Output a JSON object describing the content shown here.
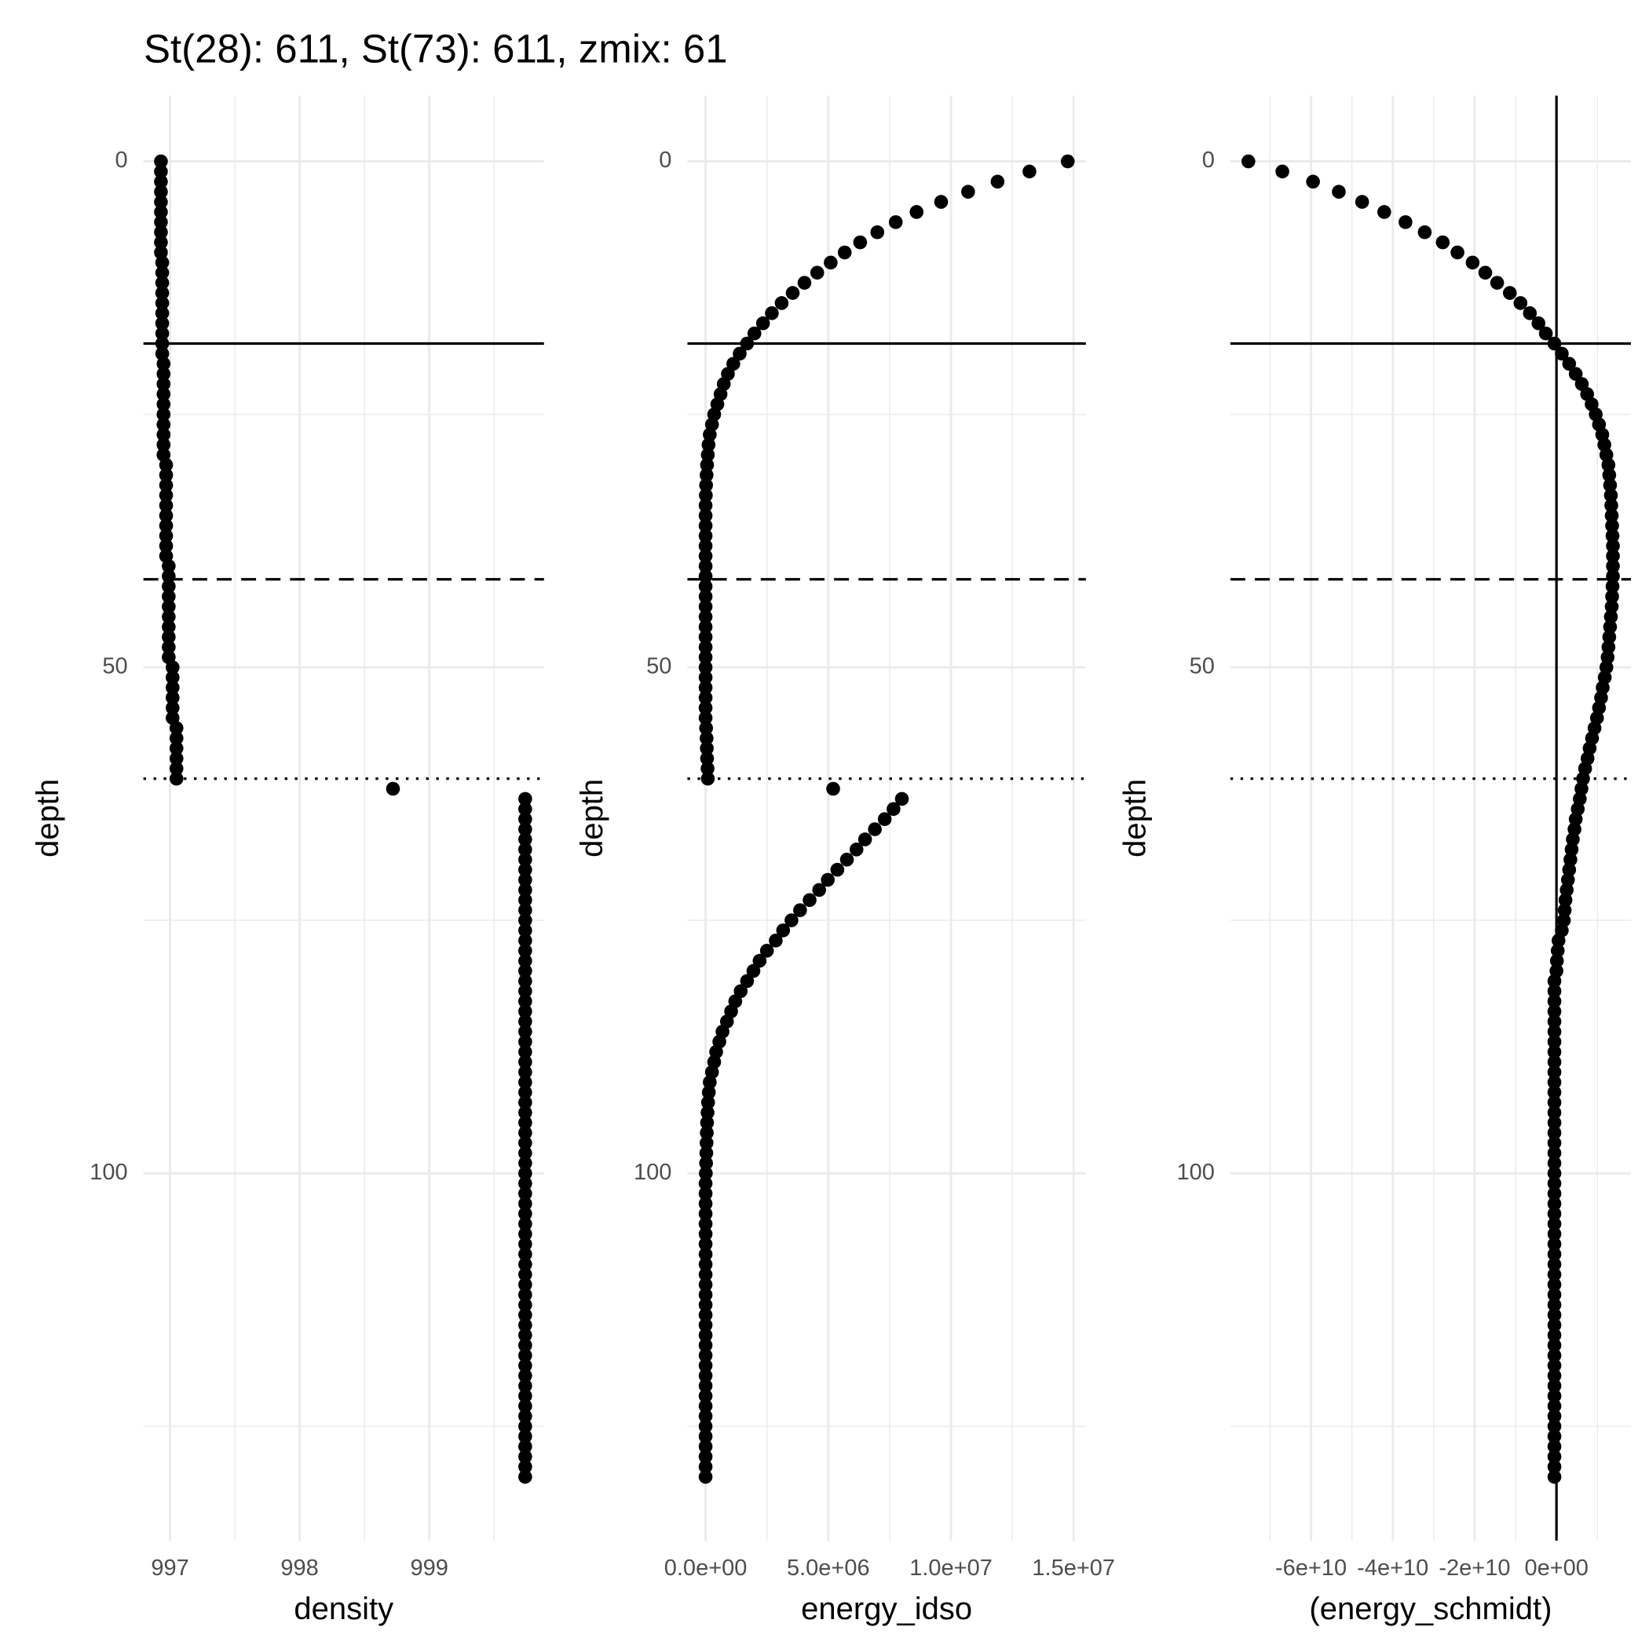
{
  "title": "St(28): 611, St(73): 611, zmix: 61",
  "chart_data": [
    {
      "type": "scatter",
      "x_label": "density",
      "y_label": "depth",
      "color": "#000000",
      "xlim": [
        996.795,
        999.885
      ],
      "xticks": [
        997,
        998,
        999
      ],
      "x_minor_ticks": [
        997.5,
        998.5,
        999.5
      ],
      "ylim": [
        -6.5,
        136.3
      ],
      "y_reverse": true,
      "yticks": [
        0,
        50,
        100
      ],
      "y_minor_ticks": [
        25,
        75,
        125
      ],
      "grid": true,
      "hlines": [
        {
          "value": 18,
          "style": "solid"
        },
        {
          "value": 41.3,
          "style": "dashed"
        },
        {
          "value": 61,
          "style": "dotted"
        }
      ],
      "vlines": [],
      "x": [
        996.93,
        996.93,
        996.93,
        996.93,
        996.93,
        996.93,
        996.93,
        996.93,
        996.93,
        996.93,
        996.94,
        996.94,
        996.94,
        996.94,
        996.94,
        996.94,
        996.94,
        996.94,
        996.94,
        996.94,
        996.95,
        996.95,
        996.95,
        996.95,
        996.95,
        996.95,
        996.95,
        996.95,
        996.95,
        996.95,
        996.97,
        996.97,
        996.97,
        996.97,
        996.97,
        996.97,
        996.97,
        996.97,
        996.97,
        996.97,
        996.99,
        996.99,
        996.99,
        996.99,
        996.99,
        996.99,
        996.99,
        996.99,
        996.99,
        996.99,
        997.02,
        997.02,
        997.02,
        997.02,
        997.02,
        997.02,
        997.05,
        997.05,
        997.05,
        997.05,
        997.05,
        997.05,
        998.72,
        999.74,
        999.74,
        999.74,
        999.74,
        999.74,
        999.74,
        999.74,
        999.74,
        999.74,
        999.74,
        999.74,
        999.74,
        999.74,
        999.74,
        999.74,
        999.74,
        999.74,
        999.74,
        999.74,
        999.74,
        999.74,
        999.74,
        999.74,
        999.74,
        999.74,
        999.74,
        999.74,
        999.74,
        999.74,
        999.74,
        999.74,
        999.74,
        999.74,
        999.74,
        999.74,
        999.74,
        999.74,
        999.74,
        999.74,
        999.74,
        999.74,
        999.74,
        999.74,
        999.74,
        999.74,
        999.74,
        999.74,
        999.74,
        999.74,
        999.74,
        999.74,
        999.74,
        999.74,
        999.74,
        999.74,
        999.74,
        999.74,
        999.74,
        999.74,
        999.74,
        999.74,
        999.74,
        999.74,
        999.74,
        999.74,
        999.74,
        999.74,
        999.74
      ],
      "y": [
        0,
        1,
        2,
        3,
        4,
        5,
        6,
        7,
        8,
        9,
        10,
        11,
        12,
        13,
        14,
        15,
        16,
        17,
        18,
        19,
        20,
        21,
        22,
        23,
        24,
        25,
        26,
        27,
        28,
        29,
        30,
        31,
        32,
        33,
        34,
        35,
        36,
        37,
        38,
        39,
        40,
        41,
        42,
        43,
        44,
        45,
        46,
        47,
        48,
        49,
        50,
        51,
        52,
        53,
        54,
        55,
        56,
        57,
        58,
        59,
        60,
        61,
        62,
        63,
        64,
        65,
        66,
        67,
        68,
        69,
        70,
        71,
        72,
        73,
        74,
        75,
        76,
        77,
        78,
        79,
        80,
        81,
        82,
        83,
        84,
        85,
        86,
        87,
        88,
        89,
        90,
        91,
        92,
        93,
        94,
        95,
        96,
        97,
        98,
        99,
        100,
        101,
        102,
        103,
        104,
        105,
        106,
        107,
        108,
        109,
        110,
        111,
        112,
        113,
        114,
        115,
        116,
        117,
        118,
        119,
        120,
        121,
        122,
        123,
        124,
        125,
        126,
        127,
        128,
        129,
        130
      ]
    },
    {
      "type": "scatter",
      "x_label": "energy_idso",
      "y_label": "depth",
      "color": "#000000",
      "xlim": [
        -740000,
        15500000
      ],
      "xticks": [
        {
          "value": 0,
          "label": "0.0e+00"
        },
        {
          "value": 5000000,
          "label": "5.0e+06"
        },
        {
          "value": 10000000,
          "label": "1.0e+07"
        },
        {
          "value": 15000000,
          "label": "1.5e+07"
        }
      ],
      "x_minor_ticks": [
        2500000,
        7500000,
        12500000
      ],
      "ylim": [
        -6.5,
        136.3
      ],
      "y_reverse": true,
      "yticks": [
        0,
        50,
        100
      ],
      "y_minor_ticks": [
        25,
        75,
        125
      ],
      "grid": true,
      "hlines": [
        {
          "value": 18,
          "style": "solid"
        },
        {
          "value": 41.3,
          "style": "dashed"
        },
        {
          "value": 61,
          "style": "dotted"
        }
      ],
      "vlines": [],
      "x": [
        14760000.0,
        13200000.0,
        11900000.0,
        10700000.0,
        9600000.0,
        8600000.0,
        7750000.0,
        7000000.0,
        6300000.0,
        5670000.0,
        5100000.0,
        4550000.0,
        4030000.0,
        3550000.0,
        3100000.0,
        2700000.0,
        2340000.0,
        1990000.0,
        1690000.0,
        1390000.0,
        1130000.0,
        910000.0,
        740000.0,
        610000.0,
        480000.0,
        350000.0,
        260000.0,
        170000.0,
        120000.0,
        90000.0,
        60000.0,
        40000.0,
        20000.0,
        10000.0,
        0,
        0,
        0,
        0,
        0,
        0,
        0,
        0,
        0,
        0,
        0,
        0,
        0,
        0,
        0,
        0,
        0,
        0,
        0,
        0,
        0,
        0,
        20000.0,
        40000.0,
        50000.0,
        60000.0,
        80000.0,
        90000.0,
        5200000.0,
        8000000.0,
        7660000.0,
        7300000.0,
        6900000.0,
        6500000.0,
        6150000.0,
        5760000.0,
        5370000.0,
        4980000.0,
        4630000.0,
        4240000.0,
        3850000.0,
        3500000.0,
        3160000.0,
        2860000.0,
        2500000.0,
        2200000.0,
        1950000.0,
        1690000.0,
        1430000.0,
        1210000.0,
        1040000.0,
        870000.0,
        690000.0,
        560000.0,
        430000.0,
        350000.0,
        260000.0,
        170000.0,
        130000.0,
        100000.0,
        80000.0,
        60000.0,
        50000.0,
        40000.0,
        30000.0,
        20000.0,
        10000.0,
        0,
        0,
        0,
        0,
        0,
        0,
        0,
        0,
        0,
        0,
        0,
        0,
        0,
        0,
        0,
        0,
        0,
        0,
        0,
        0,
        0,
        0,
        0,
        0,
        0,
        0,
        0,
        0,
        0,
        0
      ],
      "y": [
        0,
        1,
        2,
        3,
        4,
        5,
        6,
        7,
        8,
        9,
        10,
        11,
        12,
        13,
        14,
        15,
        16,
        17,
        18,
        19,
        20,
        21,
        22,
        23,
        24,
        25,
        26,
        27,
        28,
        29,
        30,
        31,
        32,
        33,
        34,
        35,
        36,
        37,
        38,
        39,
        40,
        41,
        42,
        43,
        44,
        45,
        46,
        47,
        48,
        49,
        50,
        51,
        52,
        53,
        54,
        55,
        56,
        57,
        58,
        59,
        60,
        61,
        62,
        63,
        64,
        65,
        66,
        67,
        68,
        69,
        70,
        71,
        72,
        73,
        74,
        75,
        76,
        77,
        78,
        79,
        80,
        81,
        82,
        83,
        84,
        85,
        86,
        87,
        88,
        89,
        90,
        91,
        92,
        93,
        94,
        95,
        96,
        97,
        98,
        99,
        100,
        101,
        102,
        103,
        104,
        105,
        106,
        107,
        108,
        109,
        110,
        111,
        112,
        113,
        114,
        115,
        116,
        117,
        118,
        119,
        120,
        121,
        122,
        123,
        124,
        125,
        126,
        127,
        128,
        129,
        130
      ]
    },
    {
      "type": "scatter",
      "x_label": "(energy_schmidt)",
      "y_label": "depth",
      "color": "#000000",
      "xlim": [
        -79700000000.0,
        18200000000.0
      ],
      "xticks": [
        {
          "value": -60000000000.0,
          "label": "-6e+10"
        },
        {
          "value": -40000000000.0,
          "label": "-4e+10"
        },
        {
          "value": -20000000000.0,
          "label": "-2e+10"
        },
        {
          "value": 0,
          "label": "0e+00"
        }
      ],
      "x_minor_ticks": [
        -70000000000.0,
        -50000000000.0,
        -30000000000.0,
        -10000000000.0,
        10000000000.0
      ],
      "ylim": [
        -6.5,
        136.3
      ],
      "y_reverse": true,
      "yticks": [
        0,
        50,
        100
      ],
      "y_minor_ticks": [
        25,
        75,
        125
      ],
      "grid": true,
      "hlines": [
        {
          "value": 18,
          "style": "solid"
        },
        {
          "value": 41.3,
          "style": "dashed"
        },
        {
          "value": 61,
          "style": "dotted"
        }
      ],
      "vlines": [
        {
          "value": 0,
          "style": "solid"
        }
      ],
      "x": [
        -75300000000.0,
        -67000000000.0,
        -59500000000.0,
        -53200000000.0,
        -47500000000.0,
        -42100000000.0,
        -36900000000.0,
        -32200000000.0,
        -27800000000.0,
        -24200000000.0,
        -20500000000.0,
        -17400000000.0,
        -14500000000.0,
        -11400000000.0,
        -8800000000.0,
        -6500000000.0,
        -4400000000.0,
        -2600000000.0,
        -500000000.0,
        1300000000.0,
        3100000000.0,
        4700000000.0,
        6200000000.0,
        7500000000.0,
        8600000000.0,
        9600000000.0,
        10400000000.0,
        11200000000.0,
        11700000000.0,
        12200000000.0,
        12700000000.0,
        12900000000.0,
        13100000000.0,
        13300000000.0,
        13400000000.0,
        13500000000.0,
        13600000000.0,
        13700000000.0,
        13800000000.0,
        13800000000.0,
        13800000000.0,
        13800000000.0,
        13700000000.0,
        13600000000.0,
        13500000000.0,
        13300000000.0,
        13100000000.0,
        12900000000.0,
        12700000000.0,
        12500000000.0,
        12200000000.0,
        11800000000.0,
        11300000000.0,
        10900000000.0,
        10400000000.0,
        9900000000.0,
        9300000000.0,
        8700000000.0,
        8100000000.0,
        7600000000.0,
        7000000000.0,
        6500000000.0,
        6100000000.0,
        5700000000.0,
        5200000000.0,
        4700000000.0,
        4400000000.0,
        4000000000.0,
        3700000000.0,
        3400000000.0,
        3100000000.0,
        2800000000.0,
        2500000000.0,
        2200000000.0,
        2000000000.0,
        1800000000.0,
        1300000000.0,
        500000000.0,
        300000000.0,
        100000000.0,
        0,
        -500000000.0,
        -500000000.0,
        -500000000.0,
        -500000000.0,
        -500000000.0,
        -500000000.0,
        -500000000.0,
        -500000000.0,
        -500000000.0,
        -500000000.0,
        -500000000.0,
        -500000000.0,
        -500000000.0,
        -500000000.0,
        -500000000.0,
        -500000000.0,
        -500000000.0,
        -500000000.0,
        -500000000.0,
        -500000000.0,
        -500000000.0,
        -500000000.0,
        -500000000.0,
        -500000000.0,
        -500000000.0,
        -500000000.0,
        -500000000.0,
        -500000000.0,
        -500000000.0,
        -500000000.0,
        -500000000.0,
        -500000000.0,
        -500000000.0,
        -500000000.0,
        -500000000.0,
        -500000000.0,
        -500000000.0,
        -500000000.0,
        -500000000.0,
        -500000000.0,
        -500000000.0,
        -500000000.0,
        -500000000.0,
        -500000000.0,
        -500000000.0,
        -500000000.0,
        -500000000.0,
        -500000000.0,
        -500000000.0,
        -500000000.0
      ],
      "y": [
        0,
        1,
        2,
        3,
        4,
        5,
        6,
        7,
        8,
        9,
        10,
        11,
        12,
        13,
        14,
        15,
        16,
        17,
        18,
        19,
        20,
        21,
        22,
        23,
        24,
        25,
        26,
        27,
        28,
        29,
        30,
        31,
        32,
        33,
        34,
        35,
        36,
        37,
        38,
        39,
        40,
        41,
        42,
        43,
        44,
        45,
        46,
        47,
        48,
        49,
        50,
        51,
        52,
        53,
        54,
        55,
        56,
        57,
        58,
        59,
        60,
        61,
        62,
        63,
        64,
        65,
        66,
        67,
        68,
        69,
        70,
        71,
        72,
        73,
        74,
        75,
        76,
        77,
        78,
        79,
        80,
        81,
        82,
        83,
        84,
        85,
        86,
        87,
        88,
        89,
        90,
        91,
        92,
        93,
        94,
        95,
        96,
        97,
        98,
        99,
        100,
        101,
        102,
        103,
        104,
        105,
        106,
        107,
        108,
        109,
        110,
        111,
        112,
        113,
        114,
        115,
        116,
        117,
        118,
        119,
        120,
        121,
        122,
        123,
        124,
        125,
        126,
        127,
        128,
        129,
        130
      ]
    }
  ]
}
